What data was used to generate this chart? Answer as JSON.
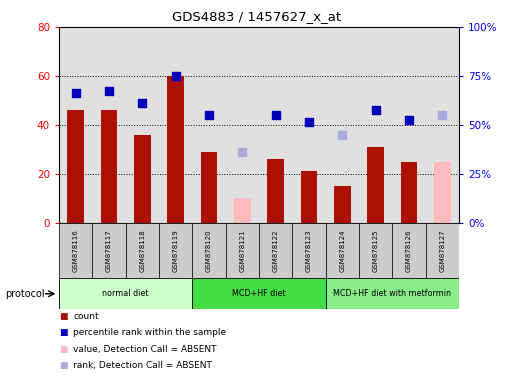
{
  "title": "GDS4883 / 1457627_x_at",
  "samples": [
    "GSM878116",
    "GSM878117",
    "GSM878118",
    "GSM878119",
    "GSM878120",
    "GSM878121",
    "GSM878122",
    "GSM878123",
    "GSM878124",
    "GSM878125",
    "GSM878126",
    "GSM878127"
  ],
  "count_present": [
    46,
    46,
    36,
    60,
    29,
    null,
    26,
    21,
    15,
    31,
    25,
    null
  ],
  "count_absent": [
    null,
    null,
    null,
    null,
    null,
    10,
    null,
    null,
    null,
    null,
    null,
    25
  ],
  "percentile_present": [
    53,
    54,
    49,
    60,
    44,
    null,
    44,
    41,
    null,
    46,
    42,
    null
  ],
  "percentile_absent": [
    null,
    null,
    null,
    null,
    null,
    29,
    null,
    null,
    36,
    null,
    null,
    44
  ],
  "groups": [
    {
      "label": "normal diet",
      "start": 0,
      "end": 4,
      "color": "#ccffcc"
    },
    {
      "label": "MCD+HF diet",
      "start": 4,
      "end": 8,
      "color": "#44dd44"
    },
    {
      "label": "MCD+HF diet with metformin",
      "start": 8,
      "end": 12,
      "color": "#88ee88"
    }
  ],
  "ylim_left": [
    0,
    80
  ],
  "ylim_right_labels": [
    "0%",
    "25%",
    "50%",
    "75%",
    "100%"
  ],
  "ylim_right_ticks": [
    0,
    25,
    50,
    75,
    100
  ],
  "bar_width": 0.5,
  "bar_color_present": "#aa1100",
  "bar_color_absent": "#ffbbbb",
  "dot_color_present": "#0000bb",
  "dot_color_absent": "#aaaadd",
  "dot_size": 40,
  "bg_color": "#e0e0e0",
  "cell_color": "#cccccc",
  "left_yticks": [
    0,
    20,
    40,
    60,
    80
  ],
  "right_yticks_mapped": [
    0,
    20,
    40,
    60,
    80
  ],
  "figsize": [
    5.13,
    3.84
  ],
  "dpi": 100
}
